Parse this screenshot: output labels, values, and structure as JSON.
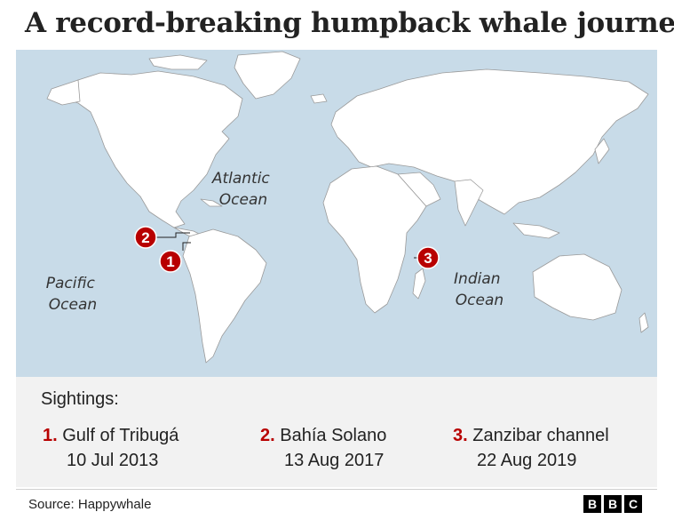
{
  "title": "A record-breaking humpback whale journey",
  "oceans": {
    "atlantic": [
      "Atlantic",
      "Ocean"
    ],
    "pacific": [
      "Pacific",
      "Ocean"
    ],
    "indian": [
      "Indian",
      "Ocean"
    ]
  },
  "markers": [
    {
      "number": "1",
      "place": "Gulf of Tribugá"
    },
    {
      "number": "2",
      "place": "Bahía Solano"
    },
    {
      "number": "3",
      "place": "Zanzibar channel"
    }
  ],
  "legend": {
    "heading": "Sightings:",
    "items": [
      {
        "num": "1.",
        "place": "Gulf of Tribugá",
        "date": "10 Jul 2013"
      },
      {
        "num": "2.",
        "place": "Bahía Solano",
        "date": "13 Aug 2017"
      },
      {
        "num": "3.",
        "place": "Zanzibar channel",
        "date": "22 Aug 2019"
      }
    ]
  },
  "source": "Source: Happywhale",
  "logo": [
    "B",
    "B",
    "C"
  ],
  "colors": {
    "ocean": "#c8dbe8",
    "land": "#ffffff",
    "marker": "#b80000",
    "legend_bg": "#f2f2f2"
  }
}
